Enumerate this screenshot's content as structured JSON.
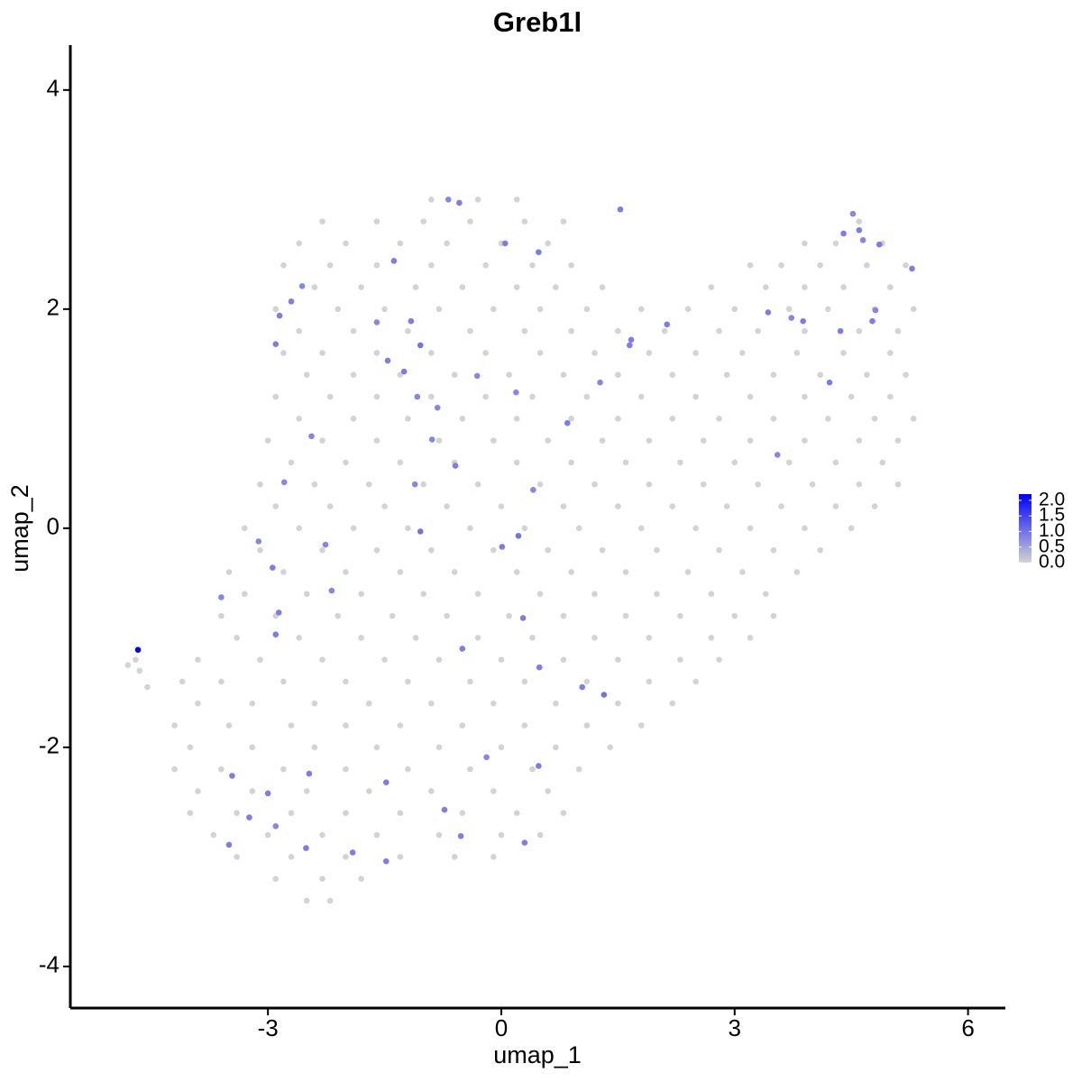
{
  "chart_data": {
    "type": "scatter",
    "title": "Greb1l",
    "xlabel": "umap_1",
    "ylabel": "umap_2",
    "x": [
      -0.9,
      -0.3,
      0.2,
      -2.3,
      -1.6,
      -1.0,
      -0.4,
      0.3,
      0.8,
      4.6,
      -2.6,
      -2.0,
      -1.3,
      -0.7,
      0.0,
      0.6,
      3.9,
      4.3,
      4.9,
      -2.8,
      -2.2,
      -1.6,
      -0.9,
      -0.2,
      0.4,
      0.9,
      3.2,
      3.6,
      4.1,
      4.7,
      5.2,
      -2.4,
      -1.8,
      -1.1,
      -0.5,
      0.2,
      0.7,
      1.3,
      2.7,
      3.4,
      3.9,
      4.4,
      5.0,
      -2.9,
      -2.1,
      -1.5,
      -0.8,
      -0.1,
      0.5,
      1.1,
      1.8,
      2.4,
      3.0,
      3.7,
      4.2,
      4.8,
      5.3,
      -2.6,
      -1.9,
      -1.2,
      -0.4,
      0.3,
      0.9,
      1.5,
      2.1,
      2.8,
      3.3,
      3.9,
      4.6,
      5.1,
      -2.8,
      -2.3,
      -1.6,
      -0.9,
      -0.2,
      0.5,
      1.2,
      1.9,
      2.5,
      3.1,
      3.8,
      4.4,
      5.0,
      -2.5,
      -1.9,
      -1.3,
      -0.6,
      0.1,
      0.8,
      1.5,
      2.2,
      2.9,
      3.5,
      4.1,
      4.7,
      5.2,
      -2.9,
      -2.2,
      -1.6,
      -0.9,
      -0.2,
      0.4,
      1.1,
      1.8,
      2.5,
      3.2,
      3.9,
      4.5,
      5.0,
      -2.6,
      -1.9,
      -1.2,
      -0.5,
      0.2,
      0.9,
      1.5,
      2.2,
      2.8,
      3.5,
      4.2,
      4.8,
      5.3,
      -3.0,
      -2.3,
      -1.6,
      -0.8,
      -0.1,
      0.6,
      1.3,
      1.9,
      2.6,
      3.2,
      3.9,
      4.6,
      5.1,
      -2.7,
      -2.0,
      -1.3,
      -0.6,
      0.2,
      0.9,
      1.6,
      2.3,
      3.0,
      3.7,
      4.3,
      4.9,
      -3.1,
      -2.4,
      -1.7,
      -1.0,
      -0.3,
      0.5,
      1.2,
      1.9,
      2.6,
      3.3,
      4.0,
      4.6,
      5.1,
      -2.9,
      -2.2,
      -1.5,
      -0.7,
      0.0,
      0.8,
      1.5,
      2.2,
      2.9,
      3.6,
      4.3,
      4.8,
      -3.3,
      -2.6,
      -1.9,
      -1.2,
      -0.4,
      0.3,
      1.0,
      1.8,
      2.5,
      3.2,
      3.9,
      4.5,
      -3.1,
      -2.3,
      -1.6,
      -0.9,
      -0.1,
      0.6,
      1.3,
      2.0,
      2.8,
      3.5,
      4.1,
      -3.5,
      -2.8,
      -2.0,
      -1.3,
      -0.6,
      0.2,
      0.9,
      1.6,
      2.4,
      3.1,
      3.8,
      -3.3,
      -2.5,
      -1.8,
      -1.0,
      -0.3,
      0.5,
      1.2,
      2.0,
      2.7,
      3.4,
      -3.6,
      -2.9,
      -2.1,
      -1.4,
      -0.7,
      0.1,
      0.8,
      1.6,
      2.3,
      3.0,
      3.5,
      -3.4,
      -2.6,
      -1.8,
      -1.1,
      -0.3,
      0.4,
      1.2,
      1.9,
      2.7,
      3.2,
      -3.9,
      -3.1,
      -2.3,
      -1.5,
      -0.8,
      0.0,
      0.8,
      1.5,
      2.3,
      2.8,
      -4.7,
      -4.1,
      -3.6,
      -2.8,
      -2.0,
      -1.2,
      -0.4,
      0.3,
      1.1,
      1.9,
      2.5,
      -3.9,
      -3.2,
      -2.4,
      -1.7,
      -0.9,
      -0.1,
      0.7,
      1.5,
      2.2,
      -4.2,
      -3.5,
      -2.7,
      -2.0,
      -1.3,
      -0.5,
      0.3,
      1.1,
      1.8,
      -4.0,
      -3.2,
      -2.4,
      -1.6,
      -0.8,
      0.0,
      0.7,
      1.4,
      -4.2,
      -3.6,
      -2.8,
      -2.0,
      -1.2,
      -0.4,
      0.4,
      1.0,
      -3.9,
      -3.2,
      -2.5,
      -1.7,
      -0.9,
      -0.1,
      0.6,
      -4.0,
      -3.4,
      -2.7,
      -2.0,
      -1.3,
      -0.5,
      0.2,
      0.8,
      -3.7,
      -3.0,
      -2.3,
      -1.6,
      -0.8,
      0.0,
      0.5,
      -3.4,
      -2.7,
      -2.0,
      -1.3,
      -0.6,
      -0.1,
      -2.9,
      -2.3,
      -1.8,
      -2.5,
      -2.2,
      -4.8,
      -4.65,
      -4.55,
      -4.67,
      -1.38,
      -1.04,
      -1.16,
      -1.6,
      -2.7,
      -2.85,
      -2.9,
      -0.54,
      -0.68,
      0.05,
      0.48,
      1.53,
      -1.04,
      0.22,
      0.01,
      -0.59,
      0.28,
      0.49,
      1.04,
      1.32,
      0.85,
      1.65,
      1.27,
      1.67,
      2.13,
      3.43,
      3.73,
      3.88,
      4.22,
      4.36,
      4.4,
      4.52,
      4.6,
      4.65,
      4.77,
      4.81,
      4.86,
      5.28,
      3.55,
      -3.6,
      -3.46,
      -3.0,
      -3.24,
      -2.9,
      -3.5,
      -2.51,
      -2.47,
      -1.91,
      -1.48,
      -1.48,
      -0.73,
      -0.52,
      -0.19,
      0.48,
      0.3,
      -0.5,
      -2.94,
      -2.86,
      -2.9,
      -3.12,
      -2.18,
      -2.26,
      -2.79,
      -2.44,
      -2.56,
      -1.46,
      -1.25,
      -0.82,
      -0.89,
      -1.08,
      -0.31,
      0.19,
      0.41,
      -1.11
    ],
    "y": [
      3.0,
      3.0,
      3.0,
      2.8,
      2.8,
      2.8,
      2.8,
      2.8,
      2.8,
      2.8,
      2.6,
      2.6,
      2.6,
      2.6,
      2.6,
      2.6,
      2.6,
      2.6,
      2.6,
      2.4,
      2.4,
      2.4,
      2.4,
      2.4,
      2.4,
      2.4,
      2.4,
      2.4,
      2.4,
      2.4,
      2.4,
      2.2,
      2.2,
      2.2,
      2.2,
      2.2,
      2.2,
      2.2,
      2.2,
      2.2,
      2.2,
      2.2,
      2.2,
      2.0,
      2.0,
      2.0,
      2.0,
      2.0,
      2.0,
      2.0,
      2.0,
      2.0,
      2.0,
      2.0,
      2.0,
      2.0,
      2.0,
      1.8,
      1.8,
      1.8,
      1.8,
      1.8,
      1.8,
      1.8,
      1.8,
      1.8,
      1.8,
      1.8,
      1.8,
      1.8,
      1.6,
      1.6,
      1.6,
      1.6,
      1.6,
      1.6,
      1.6,
      1.6,
      1.6,
      1.6,
      1.6,
      1.6,
      1.6,
      1.4,
      1.4,
      1.4,
      1.4,
      1.4,
      1.4,
      1.4,
      1.4,
      1.4,
      1.4,
      1.4,
      1.4,
      1.4,
      1.2,
      1.2,
      1.2,
      1.2,
      1.2,
      1.2,
      1.2,
      1.2,
      1.2,
      1.2,
      1.2,
      1.2,
      1.2,
      1.0,
      1.0,
      1.0,
      1.0,
      1.0,
      1.0,
      1.0,
      1.0,
      1.0,
      1.0,
      1.0,
      1.0,
      1.0,
      0.8,
      0.8,
      0.8,
      0.8,
      0.8,
      0.8,
      0.8,
      0.8,
      0.8,
      0.8,
      0.8,
      0.8,
      0.8,
      0.6,
      0.6,
      0.6,
      0.6,
      0.6,
      0.6,
      0.6,
      0.6,
      0.6,
      0.6,
      0.6,
      0.6,
      0.4,
      0.4,
      0.4,
      0.4,
      0.4,
      0.4,
      0.4,
      0.4,
      0.4,
      0.4,
      0.4,
      0.4,
      0.4,
      0.2,
      0.2,
      0.2,
      0.2,
      0.2,
      0.2,
      0.2,
      0.2,
      0.2,
      0.2,
      0.2,
      0.2,
      0.0,
      0.0,
      0.0,
      0.0,
      0.0,
      0.0,
      0.0,
      0.0,
      0.0,
      0.0,
      0.0,
      0.0,
      -0.2,
      -0.2,
      -0.2,
      -0.2,
      -0.2,
      -0.2,
      -0.2,
      -0.2,
      -0.2,
      -0.2,
      -0.2,
      -0.4,
      -0.4,
      -0.4,
      -0.4,
      -0.4,
      -0.4,
      -0.4,
      -0.4,
      -0.4,
      -0.4,
      -0.4,
      -0.6,
      -0.6,
      -0.6,
      -0.6,
      -0.6,
      -0.6,
      -0.6,
      -0.6,
      -0.6,
      -0.6,
      -0.8,
      -0.8,
      -0.8,
      -0.8,
      -0.8,
      -0.8,
      -0.8,
      -0.8,
      -0.8,
      -0.8,
      -0.8,
      -1.0,
      -1.0,
      -1.0,
      -1.0,
      -1.0,
      -1.0,
      -1.0,
      -1.0,
      -1.0,
      -1.0,
      -1.2,
      -1.2,
      -1.2,
      -1.2,
      -1.2,
      -1.2,
      -1.2,
      -1.2,
      -1.2,
      -1.2,
      -1.2,
      -1.4,
      -1.4,
      -1.4,
      -1.4,
      -1.4,
      -1.4,
      -1.4,
      -1.4,
      -1.4,
      -1.4,
      -1.6,
      -1.6,
      -1.6,
      -1.6,
      -1.6,
      -1.6,
      -1.6,
      -1.6,
      -1.6,
      -1.8,
      -1.8,
      -1.8,
      -1.8,
      -1.8,
      -1.8,
      -1.8,
      -1.8,
      -1.8,
      -2.0,
      -2.0,
      -2.0,
      -2.0,
      -2.0,
      -2.0,
      -2.0,
      -2.0,
      -2.2,
      -2.2,
      -2.2,
      -2.2,
      -2.2,
      -2.2,
      -2.2,
      -2.2,
      -2.4,
      -2.4,
      -2.4,
      -2.4,
      -2.4,
      -2.4,
      -2.4,
      -2.6,
      -2.6,
      -2.6,
      -2.6,
      -2.6,
      -2.6,
      -2.6,
      -2.6,
      -2.8,
      -2.8,
      -2.8,
      -2.8,
      -2.8,
      -2.8,
      -2.8,
      -3.0,
      -3.0,
      -3.0,
      -3.0,
      -3.0,
      -3.0,
      -3.2,
      -3.2,
      -3.2,
      -3.4,
      -3.4,
      -1.25,
      -1.3,
      -1.45,
      -1.11,
      2.44,
      1.67,
      1.89,
      1.88,
      2.07,
      1.94,
      1.68,
      2.97,
      3.0,
      2.6,
      2.52,
      2.91,
      -0.03,
      -0.07,
      -0.17,
      0.57,
      -0.82,
      -1.27,
      -1.45,
      -1.52,
      0.96,
      1.67,
      1.33,
      1.72,
      1.86,
      1.97,
      1.92,
      1.89,
      1.33,
      1.8,
      2.69,
      2.87,
      2.72,
      2.63,
      1.89,
      1.99,
      2.59,
      2.37,
      0.67,
      -0.63,
      -2.26,
      -2.42,
      -2.64,
      -2.72,
      -2.89,
      -2.92,
      -2.24,
      -2.96,
      -3.04,
      -2.32,
      -2.57,
      -2.81,
      -2.09,
      -2.17,
      -2.87,
      -1.1,
      -0.36,
      -0.77,
      -0.97,
      -0.12,
      -0.57,
      -0.15,
      0.42,
      0.84,
      2.21,
      1.53,
      1.43,
      1.1,
      0.81,
      1.2,
      1.39,
      1.24,
      0.35,
      0.4
    ],
    "values": [
      0,
      0,
      0,
      0,
      0,
      0,
      0,
      0,
      0,
      0,
      0,
      0,
      0,
      0,
      0,
      0,
      0,
      0,
      0,
      0,
      0,
      0,
      0,
      0,
      0,
      0,
      0,
      0,
      0,
      0,
      0,
      0,
      0,
      0,
      0,
      0,
      0,
      0,
      0,
      0,
      0,
      0,
      0,
      0,
      0,
      0,
      0,
      0,
      0,
      0,
      0,
      0,
      0,
      0,
      0,
      0,
      0,
      0,
      0,
      0,
      0,
      0,
      0,
      0,
      0,
      0,
      0,
      0,
      0,
      0,
      0,
      0,
      0,
      0,
      0,
      0,
      0,
      0,
      0,
      0,
      0,
      0,
      0,
      0,
      0,
      0,
      0,
      0,
      0,
      0,
      0,
      0,
      0,
      0,
      0,
      0,
      0,
      0,
      0,
      0,
      0,
      0,
      0,
      0,
      0,
      0,
      0,
      0,
      0,
      0,
      0,
      0,
      0,
      0,
      0,
      0,
      0,
      0,
      0,
      0,
      0,
      0,
      0,
      0,
      0,
      0,
      0,
      0,
      0,
      0,
      0,
      0,
      0,
      0,
      0,
      0,
      0,
      0,
      0,
      0,
      0,
      0,
      0,
      0,
      0,
      0,
      0,
      0,
      0,
      0,
      0,
      0,
      0,
      0,
      0,
      0,
      0,
      0,
      0,
      0,
      0,
      0,
      0,
      0,
      0,
      0,
      0,
      0,
      0,
      0,
      0,
      0,
      0,
      0,
      0,
      0,
      0,
      0,
      0,
      0,
      0,
      0,
      0,
      0,
      0,
      0,
      0,
      0,
      0,
      0,
      0,
      0,
      0,
      0,
      0,
      0,
      0,
      0,
      0,
      0,
      0,
      0,
      0,
      0,
      0,
      0,
      0,
      0,
      0,
      0,
      0,
      0,
      0,
      0,
      0,
      0,
      0,
      0,
      0,
      0,
      0,
      0,
      0,
      0,
      0,
      0,
      0,
      0,
      0,
      0,
      0,
      0,
      0,
      0,
      0,
      0,
      0,
      0,
      0,
      0,
      0,
      0,
      0,
      0,
      0,
      0,
      0,
      0,
      0,
      0,
      0,
      0,
      0,
      0,
      0,
      0,
      0,
      0,
      0,
      0,
      0,
      0,
      0,
      0,
      0,
      0,
      0,
      0,
      0,
      0,
      0,
      0,
      0,
      0,
      0,
      0,
      0,
      0,
      0,
      0,
      0,
      0,
      0,
      0,
      0,
      0,
      0,
      0,
      0,
      0,
      0,
      0,
      0,
      0,
      0,
      0,
      0,
      0,
      0,
      0,
      0,
      0,
      0,
      0,
      0,
      0,
      0,
      0,
      0,
      0,
      0,
      0,
      0,
      0,
      0,
      0,
      0,
      0,
      0,
      0,
      0,
      0,
      0,
      0,
      0,
      0,
      0,
      0,
      2.2,
      0.9,
      1.0,
      0.9,
      0.8,
      0.9,
      0.9,
      0.9,
      0.9,
      0.8,
      0.9,
      0.9,
      0.9,
      1.0,
      1.0,
      0.9,
      0.9,
      0.9,
      0.9,
      0.9,
      1.0,
      0.9,
      0.9,
      0.8,
      0.9,
      0.9,
      0.9,
      0.8,
      0.9,
      0.9,
      0.9,
      0.9,
      0.8,
      0.9,
      0.8,
      0.9,
      0.8,
      0.9,
      0.9,
      0.8,
      0.8,
      0.9,
      0.9,
      0.9,
      0.8,
      0.9,
      0.9,
      0.9,
      0.9,
      0.9,
      0.9,
      0.9,
      0.9,
      0.8,
      0.9,
      0.9,
      0.9,
      0.9,
      0.9,
      0.9,
      0.8,
      0.8,
      0.8,
      0.8,
      0.8,
      0.8,
      0.9,
      0.9,
      0.8,
      0.8,
      0.8,
      0.8,
      0.8,
      0.8,
      0.8
    ],
    "low_color": "#d3d3d3",
    "high_color": "#0000ff",
    "xlim": [
      -5.54,
      6.48
    ],
    "ylim": [
      -4.38,
      4.41
    ],
    "xticks": [
      -3,
      0,
      3,
      6
    ],
    "yticks": [
      -4,
      -2,
      0,
      2,
      4
    ],
    "colorbar": {
      "lim": [
        0,
        2.2
      ],
      "ticks": [
        {
          "value": 0,
          "label": "0.0"
        },
        {
          "value": 0.5,
          "label": "0.5"
        },
        {
          "value": 1,
          "label": "1.0"
        },
        {
          "value": 1.5,
          "label": "1.5"
        },
        {
          "value": 2,
          "label": "2.0"
        }
      ]
    }
  }
}
